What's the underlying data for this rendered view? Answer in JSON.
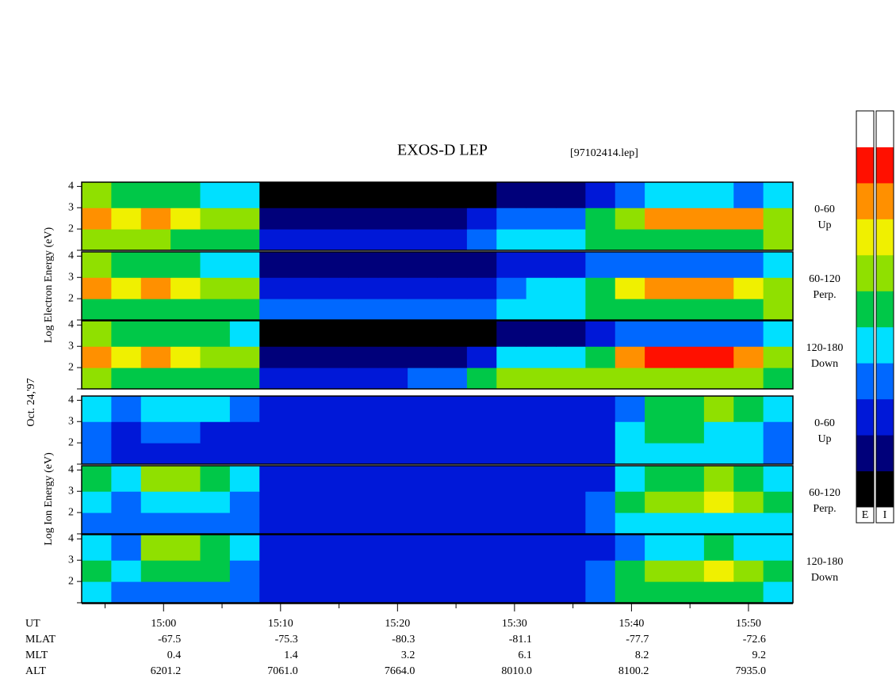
{
  "chart_data": {
    "type": "spectrogram",
    "title": "EXOS-D LEP",
    "subtitle": "[97102414.lep]",
    "date_label": "Oct. 24,'97",
    "electron_axis_label": "Log  Electron  Energy (eV)",
    "ion_axis_label": "Log  Ion  Energy (eV)",
    "xlim": [
      893,
      953.8
    ],
    "xticks": [
      {
        "value": 900,
        "label": "15:00"
      },
      {
        "value": 910,
        "label": "15:10"
      },
      {
        "value": 920,
        "label": "15:20"
      },
      {
        "value": 930,
        "label": "15:30"
      },
      {
        "value": 940,
        "label": "15:40"
      },
      {
        "value": 950,
        "label": "15:50"
      }
    ],
    "xminorticks": [
      895,
      905,
      915,
      925,
      935,
      945
    ],
    "ylim": [
      1,
      4.2
    ],
    "yticks": [
      2,
      3,
      4
    ],
    "ybins": [
      1,
      2,
      3,
      4.2
    ],
    "colors": [
      "#000000",
      "#00007a",
      "#0018d8",
      "#0068ff",
      "#00e0ff",
      "#00c848",
      "#90e000",
      "#f0f000",
      "#ff9000",
      "#ff1000",
      "#ffffff"
    ],
    "colorbar_labels": [
      "E",
      "I"
    ],
    "ephemeris_time_label": "UT",
    "ephemeris": [
      {
        "name": "MLAT",
        "values": [
          "-67.5",
          "-75.3",
          "-80.3",
          "-81.1",
          "-77.7",
          "-72.6"
        ]
      },
      {
        "name": "MLT",
        "values": [
          "0.4",
          "1.4",
          "3.2",
          "6.1",
          "8.2",
          "9.2"
        ]
      },
      {
        "name": "ALT",
        "values": [
          "6201.2",
          "7061.0",
          "7664.0",
          "8010.0",
          "8100.2",
          "7935.0"
        ]
      }
    ],
    "panels": [
      {
        "species": "electron",
        "angle": "0-60",
        "direction": "Up",
        "z": [
          [
            6,
            6,
            6,
            5,
            5,
            5,
            2,
            2,
            2,
            2,
            2,
            2,
            2,
            3,
            4,
            4,
            4,
            5,
            5,
            5,
            5,
            5,
            5,
            6
          ],
          [
            8,
            7,
            8,
            7,
            6,
            6,
            1,
            1,
            1,
            1,
            1,
            1,
            1,
            2,
            3,
            3,
            3,
            5,
            6,
            8,
            8,
            8,
            8,
            6
          ],
          [
            6,
            5,
            5,
            5,
            4,
            4,
            0,
            0,
            0,
            0,
            0,
            0,
            0,
            0,
            1,
            1,
            1,
            2,
            3,
            4,
            4,
            4,
            3,
            4
          ]
        ]
      },
      {
        "species": "electron",
        "angle": "60-120",
        "direction": "Perp.",
        "z": [
          [
            5,
            5,
            5,
            5,
            5,
            5,
            3,
            3,
            3,
            3,
            3,
            3,
            3,
            3,
            4,
            4,
            4,
            5,
            5,
            5,
            5,
            5,
            5,
            6
          ],
          [
            8,
            7,
            8,
            7,
            6,
            6,
            2,
            2,
            2,
            2,
            2,
            2,
            2,
            2,
            3,
            4,
            4,
            5,
            7,
            8,
            8,
            8,
            7,
            6
          ],
          [
            6,
            5,
            5,
            5,
            4,
            4,
            1,
            1,
            1,
            1,
            1,
            1,
            1,
            1,
            2,
            2,
            2,
            3,
            3,
            3,
            3,
            3,
            3,
            4
          ]
        ]
      },
      {
        "species": "electron",
        "angle": "120-180",
        "direction": "Down",
        "z": [
          [
            6,
            5,
            5,
            5,
            5,
            5,
            2,
            2,
            2,
            2,
            2,
            3,
            3,
            5,
            6,
            6,
            6,
            6,
            6,
            6,
            6,
            6,
            6,
            5
          ],
          [
            8,
            7,
            8,
            7,
            6,
            6,
            1,
            1,
            1,
            1,
            1,
            1,
            1,
            2,
            4,
            4,
            4,
            5,
            8,
            9,
            9,
            9,
            8,
            6
          ],
          [
            6,
            5,
            5,
            5,
            5,
            4,
            0,
            0,
            0,
            0,
            0,
            0,
            0,
            0,
            1,
            1,
            1,
            2,
            3,
            3,
            3,
            3,
            3,
            4
          ]
        ]
      },
      {
        "species": "ion",
        "angle": "0-60",
        "direction": "Up",
        "z": [
          [
            3,
            2,
            2,
            2,
            2,
            2,
            2,
            2,
            2,
            2,
            2,
            2,
            2,
            2,
            2,
            2,
            2,
            2,
            4,
            4,
            4,
            4,
            4,
            3
          ],
          [
            3,
            2,
            3,
            3,
            2,
            2,
            2,
            2,
            2,
            2,
            2,
            2,
            2,
            2,
            2,
            2,
            2,
            2,
            4,
            5,
            5,
            4,
            4,
            3
          ],
          [
            4,
            3,
            4,
            4,
            4,
            3,
            2,
            2,
            2,
            2,
            2,
            2,
            2,
            2,
            2,
            2,
            2,
            2,
            3,
            5,
            5,
            6,
            5,
            4
          ]
        ]
      },
      {
        "species": "ion",
        "angle": "60-120",
        "direction": "Perp.",
        "z": [
          [
            3,
            3,
            3,
            3,
            3,
            3,
            2,
            2,
            2,
            2,
            2,
            2,
            2,
            2,
            2,
            2,
            2,
            3,
            4,
            4,
            4,
            4,
            4,
            4
          ],
          [
            4,
            3,
            4,
            4,
            4,
            3,
            2,
            2,
            2,
            2,
            2,
            2,
            2,
            2,
            2,
            2,
            2,
            3,
            5,
            6,
            6,
            7,
            6,
            5
          ],
          [
            5,
            4,
            6,
            6,
            5,
            4,
            2,
            2,
            2,
            2,
            2,
            2,
            2,
            2,
            2,
            2,
            2,
            2,
            4,
            5,
            5,
            6,
            5,
            4
          ]
        ]
      },
      {
        "species": "ion",
        "angle": "120-180",
        "direction": "Down",
        "z": [
          [
            4,
            3,
            3,
            3,
            3,
            3,
            2,
            2,
            2,
            2,
            2,
            2,
            2,
            2,
            2,
            2,
            2,
            3,
            5,
            5,
            5,
            5,
            5,
            4
          ],
          [
            5,
            4,
            5,
            5,
            5,
            3,
            2,
            2,
            2,
            2,
            2,
            2,
            2,
            2,
            2,
            2,
            2,
            3,
            5,
            6,
            6,
            7,
            6,
            5
          ],
          [
            4,
            3,
            6,
            6,
            5,
            4,
            2,
            2,
            2,
            2,
            2,
            2,
            2,
            2,
            2,
            2,
            2,
            2,
            3,
            4,
            4,
            5,
            4,
            4
          ]
        ]
      }
    ]
  }
}
